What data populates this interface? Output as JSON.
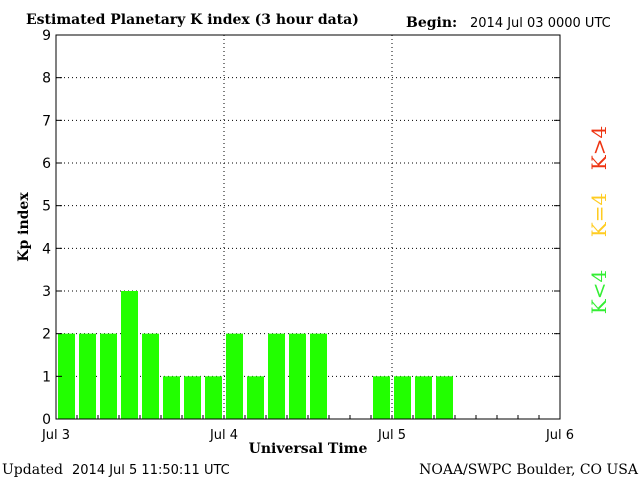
{
  "chart_data": {
    "type": "bar",
    "title": "Estimated Planetary K index (3 hour data)",
    "begin_label": "Begin:",
    "begin_value": "2014 Jul 03 0000 UTC",
    "xlabel": "Universal Time",
    "ylabel": "Kp index",
    "ylim": [
      0,
      9
    ],
    "yticks": [
      "0",
      "1",
      "2",
      "3",
      "4",
      "5",
      "6",
      "7",
      "8",
      "9"
    ],
    "xticks": [
      "Jul 3",
      "Jul 4",
      "Jul 5",
      "Jul 6"
    ],
    "x_range_intervals": 24,
    "values": [
      2,
      2,
      2,
      3,
      2,
      1,
      1,
      1,
      2,
      1,
      2,
      2,
      2,
      null,
      null,
      1,
      1,
      1,
      1,
      null,
      null,
      null,
      null,
      null
    ],
    "grid": true,
    "legend": [
      {
        "label": "K<4",
        "color": "#33ee33"
      },
      {
        "label": "K=4",
        "color": "#ffcc22"
      },
      {
        "label": "K>4",
        "color": "#ee3311"
      }
    ],
    "bar_color": "#22ff00"
  },
  "footer": {
    "updated_label": "Updated",
    "updated_value": "2014 Jul  5 11:50:11 UTC",
    "source": "NOAA/SWPC Boulder, CO USA"
  }
}
